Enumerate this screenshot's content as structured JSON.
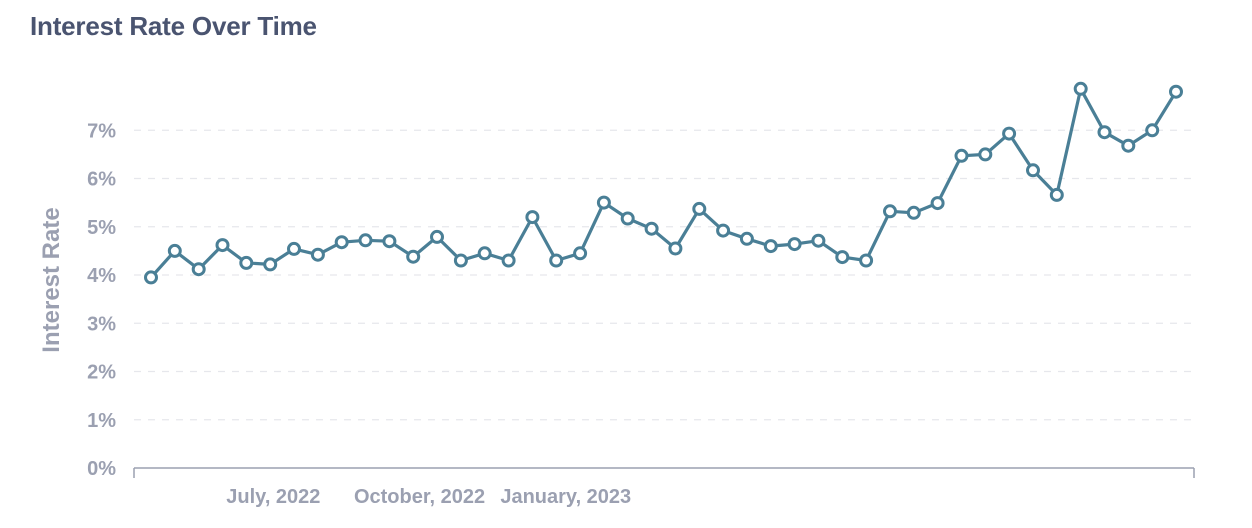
{
  "chart_data": {
    "type": "line",
    "title": "Interest Rate Over Time",
    "xlabel": "",
    "ylabel": "Interest Rate",
    "x": [
      "2022-04-15",
      "2022-04-30",
      "2022-05-15",
      "2022-05-30",
      "2022-06-14",
      "2022-06-29",
      "2022-07-14",
      "2022-07-29",
      "2022-08-13",
      "2022-08-28",
      "2022-09-12",
      "2022-09-27",
      "2022-10-12",
      "2022-10-27",
      "2022-11-11",
      "2022-11-26",
      "2022-12-11",
      "2022-12-26",
      "2023-01-10",
      "2023-01-25",
      "2023-02-09",
      "2023-02-24",
      "2023-03-11",
      "2023-03-26",
      "2023-04-10",
      "2023-04-25",
      "2023-05-10",
      "2023-05-25",
      "2023-06-09",
      "2023-06-24",
      "2023-07-09",
      "2023-07-24",
      "2023-08-08",
      "2023-08-23",
      "2023-09-07",
      "2023-09-22",
      "2023-10-07",
      "2023-10-22",
      "2023-11-06",
      "2023-11-21",
      "2023-12-06",
      "2023-12-21",
      "2024-01-05",
      "2024-01-20"
    ],
    "xticks": [
      "July, 2022",
      "October, 2022",
      "January, 2023"
    ],
    "series": [
      {
        "name": "",
        "color": "#4a7f96",
        "values": [
          3.95,
          4.5,
          4.12,
          4.62,
          4.25,
          4.22,
          4.54,
          4.42,
          4.68,
          4.72,
          4.7,
          4.38,
          4.79,
          4.3,
          4.45,
          4.3,
          5.2,
          4.3,
          4.45,
          5.5,
          5.17,
          4.96,
          4.55,
          5.37,
          4.92,
          4.75,
          4.6,
          4.64,
          4.71,
          4.37,
          4.3,
          5.32,
          5.29,
          5.49,
          6.47,
          6.5,
          6.93,
          6.17,
          5.66,
          7.86,
          6.96,
          6.68,
          7.0,
          7.8
        ]
      }
    ],
    "ylim": [
      0,
      8
    ],
    "yticks": [
      "0%",
      "1%",
      "2%",
      "3%",
      "4%",
      "5%",
      "6%",
      "7%"
    ],
    "grid": true,
    "legend": "none",
    "colors": {
      "title": "#4a5470",
      "axis": "#9ba0b1",
      "grid": "#e6e7ec",
      "line": "#4a7f96"
    }
  }
}
